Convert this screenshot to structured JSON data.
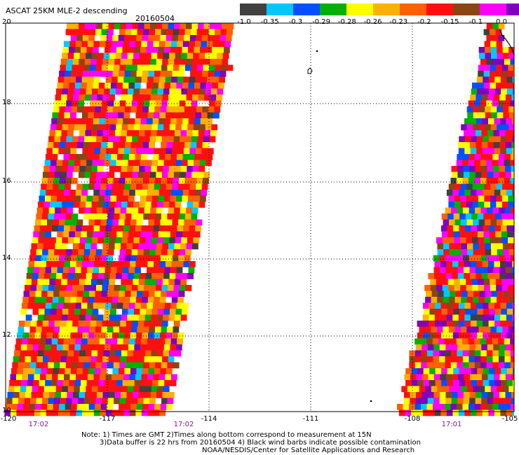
{
  "header": {
    "title": "ASCAT 25KM MLE-2 descending",
    "date": "20160504"
  },
  "colorbar": {
    "colors": [
      "#404040",
      "#00c8ff",
      "#0050ff",
      "#00b000",
      "#ffff00",
      "#ffb000",
      "#ff6000",
      "#ff1010",
      "#8b4513",
      "#ff00ff",
      "#8000c0"
    ],
    "labels": [
      "-1.0",
      "-0.35",
      "-0.3",
      "-0.29",
      "-0.28",
      "-0.26",
      "-0.23",
      "-0.2",
      "-0.15",
      "-0.1",
      "0.0"
    ]
  },
  "map": {
    "lat_labels": [
      "20",
      "18",
      "16",
      "14",
      "12",
      "10"
    ],
    "lon_labels": [
      "-120",
      "-117",
      "-114",
      "-111",
      "-108",
      "-105"
    ],
    "time_labels": [
      "17:02",
      "17:02",
      "17:01"
    ],
    "grid": "dotted"
  },
  "footer": {
    "note1": "Note: 1) Times are GMT 2)Times along bottom correspond to measurement at 15N",
    "note2": "3)Data buffer is 22 hrs from 20160504 4) Black wind barbs indicate possible contamination",
    "note3": "NOAA/NESDIS/Center for Satellite Applications and Research"
  }
}
